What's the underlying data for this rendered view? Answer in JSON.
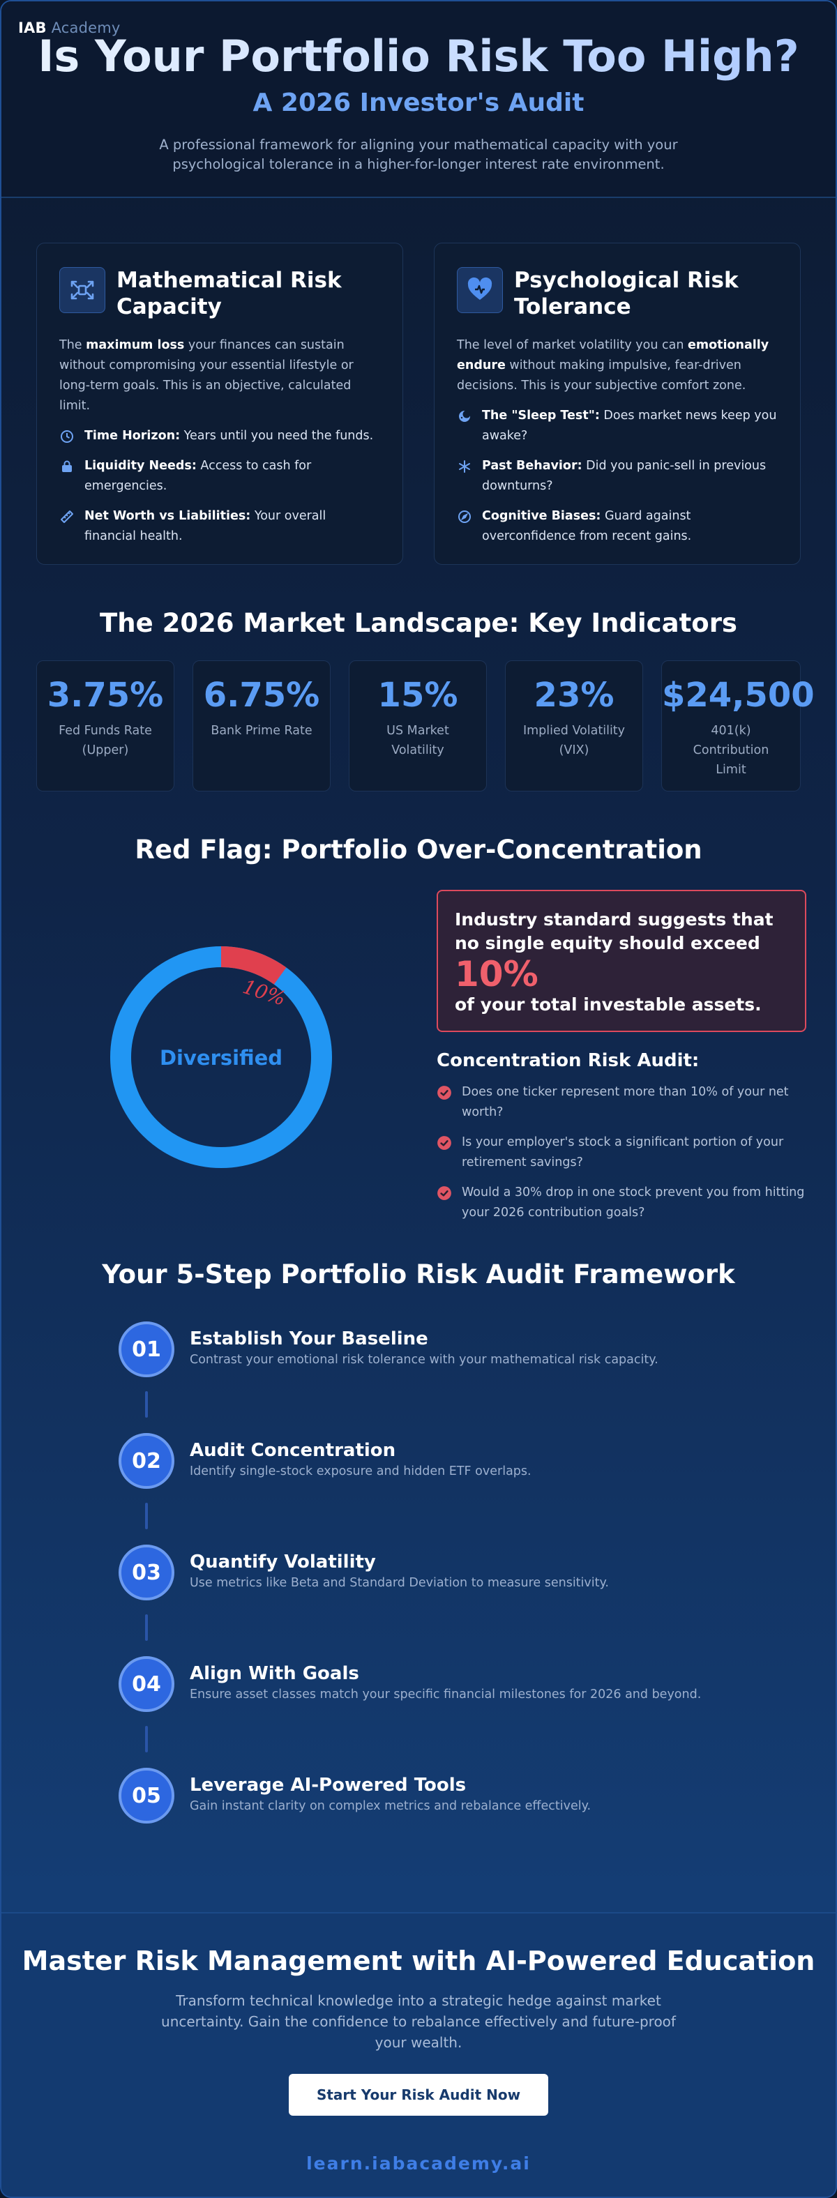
{
  "brand": {
    "name_bold": "IAB",
    "name_light": "Academy"
  },
  "header": {
    "title": "Is Your Portfolio Risk Too High?",
    "subtitle": "A 2026 Investor's Audit",
    "intro": "A professional framework for aligning your mathematical capacity with your psychological tolerance in a higher-for-longer interest rate environment."
  },
  "cards": [
    {
      "title": "Mathematical Risk Capacity",
      "icon": "scale-arrows-icon",
      "desc_pre": "The ",
      "desc_bold": "maximum loss",
      "desc_post": " your finances can sustain without compromising your essential lifestyle or long-term goals. This is an objective, calculated limit.",
      "items": [
        {
          "icon": "clock-icon",
          "bold": "Time Horizon:",
          "text": " Years until you need the funds."
        },
        {
          "icon": "lock-icon",
          "bold": "Liquidity Needs:",
          "text": " Access to cash for emergencies."
        },
        {
          "icon": "ruler-icon",
          "bold": "Net Worth vs Liabilities:",
          "text": " Your overall financial health."
        }
      ]
    },
    {
      "title": "Psychological Risk Tolerance",
      "icon": "heart-pulse-icon",
      "desc_pre": "The level of market volatility you can ",
      "desc_bold": "emotionally endure",
      "desc_post": " without making impulsive, fear-driven decisions. This is your subjective comfort zone.",
      "items": [
        {
          "icon": "moon-icon",
          "bold": "The \"Sleep Test\":",
          "text": " Does market news keep you awake?"
        },
        {
          "icon": "asterisk-icon",
          "bold": "Past Behavior:",
          "text": " Did you panic-sell in previous downturns?"
        },
        {
          "icon": "compass-icon",
          "bold": "Cognitive Biases:",
          "text": " Guard against overconfidence from recent gains."
        }
      ]
    }
  ],
  "market": {
    "title": "The 2026 Market Landscape: Key Indicators",
    "stats": [
      {
        "value": "3.75%",
        "label": "Fed Funds Rate (Upper)"
      },
      {
        "value": "6.75%",
        "label": "Bank Prime Rate"
      },
      {
        "value": "15%",
        "label": "US Market Volatility"
      },
      {
        "value": "23%",
        "label": "Implied Volatility (VIX)"
      },
      {
        "value": "$24,500",
        "label": "401(k) Contribution Limit"
      }
    ]
  },
  "concentration": {
    "title": "Red Flag: Portfolio Over-Concentration",
    "donut": {
      "center_label": "Diversified",
      "slice_label": "10%",
      "slice_fraction": 0.1,
      "colors": {
        "main": "#2196f3",
        "slice": "#e0404e"
      }
    },
    "callout": {
      "line1": "Industry standard suggests that no single equity should exceed",
      "big": "10%",
      "line2": "of your total investable assets."
    },
    "audit_title": "Concentration Risk Audit:",
    "audit_items": [
      "Does one ticker represent more than 10% of your net worth?",
      "Is your employer's stock a significant portion of your retirement savings?",
      "Would a 30% drop in one stock prevent you from hitting your 2026 contribution goals?"
    ]
  },
  "framework": {
    "title": "Your 5-Step Portfolio Risk Audit Framework",
    "steps": [
      {
        "num": "01",
        "title": "Establish Your Baseline",
        "desc": "Contrast your emotional risk tolerance with your mathematical risk capacity."
      },
      {
        "num": "02",
        "title": "Audit Concentration",
        "desc": "Identify single-stock exposure and hidden ETF overlaps."
      },
      {
        "num": "03",
        "title": "Quantify Volatility",
        "desc": "Use metrics like Beta and Standard Deviation to measure sensitivity."
      },
      {
        "num": "04",
        "title": "Align With Goals",
        "desc": "Ensure asset classes match your specific financial milestones for 2026 and beyond."
      },
      {
        "num": "05",
        "title": "Leverage AI-Powered Tools",
        "desc": "Gain instant clarity on complex metrics and rebalance effectively."
      }
    ]
  },
  "cta": {
    "title": "Master Risk Management with AI-Powered Education",
    "text": "Transform technical knowledge into a strategic hedge against market uncertainty. Gain the confidence to rebalance effectively and future-proof your wealth.",
    "button": "Start Your Risk Audit Now",
    "url": "learn.iabacademy.ai"
  },
  "colors": {
    "accent": "#5b9cf4",
    "danger": "#e0404e",
    "step_circle": "#2d67e0"
  }
}
